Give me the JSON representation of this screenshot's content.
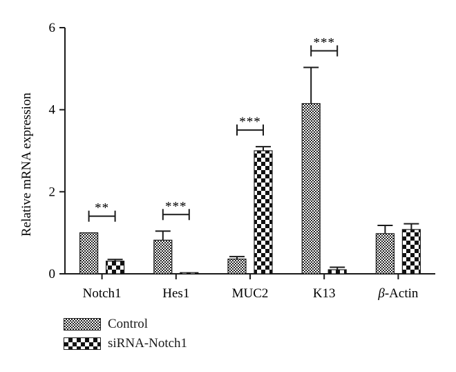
{
  "chart_data": {
    "type": "bar",
    "ylabel": "Relative mRNA expression",
    "ylim": [
      0,
      6
    ],
    "yticks": [
      "0",
      "2",
      "4",
      "6"
    ],
    "categories": [
      "Notch1",
      "Hes1",
      "MUC2",
      "K13",
      "β-Actin"
    ],
    "series": [
      {
        "name": "Control",
        "values": [
          1.0,
          0.82,
          0.36,
          4.15,
          0.98
        ],
        "errors": [
          0.0,
          0.22,
          0.06,
          0.88,
          0.2
        ],
        "pattern": "fine-checker"
      },
      {
        "name": "siRNA-Notch1",
        "values": [
          0.31,
          0.03,
          3.0,
          0.1,
          1.08
        ],
        "errors": [
          0.04,
          0.0,
          0.1,
          0.06,
          0.14
        ],
        "pattern": "coarse-checker"
      }
    ],
    "significance": [
      "**",
      "***",
      "***",
      "***",
      ""
    ],
    "legend_position": "bottom-left"
  },
  "legend": {
    "items": [
      {
        "label": "Control"
      },
      {
        "label": "siRNA-Notch1"
      }
    ]
  }
}
